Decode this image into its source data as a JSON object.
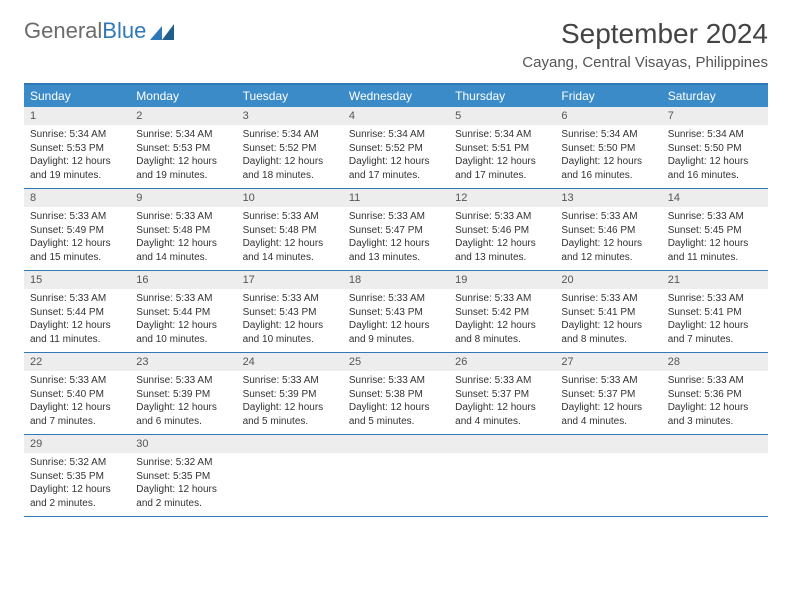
{
  "logo": {
    "text1": "General",
    "text2": "Blue"
  },
  "title": "September 2024",
  "location": "Cayang, Central Visayas, Philippines",
  "colors": {
    "header_bar": "#3b8bc9",
    "border": "#2f79b9",
    "daynum_bg": "#ededed",
    "text": "#333333",
    "logo_gray": "#6b6b6b"
  },
  "weekdays": [
    "Sunday",
    "Monday",
    "Tuesday",
    "Wednesday",
    "Thursday",
    "Friday",
    "Saturday"
  ],
  "weeks": [
    [
      {
        "n": "1",
        "sr": "5:34 AM",
        "ss": "5:53 PM",
        "dl": "12 hours and 19 minutes."
      },
      {
        "n": "2",
        "sr": "5:34 AM",
        "ss": "5:53 PM",
        "dl": "12 hours and 19 minutes."
      },
      {
        "n": "3",
        "sr": "5:34 AM",
        "ss": "5:52 PM",
        "dl": "12 hours and 18 minutes."
      },
      {
        "n": "4",
        "sr": "5:34 AM",
        "ss": "5:52 PM",
        "dl": "12 hours and 17 minutes."
      },
      {
        "n": "5",
        "sr": "5:34 AM",
        "ss": "5:51 PM",
        "dl": "12 hours and 17 minutes."
      },
      {
        "n": "6",
        "sr": "5:34 AM",
        "ss": "5:50 PM",
        "dl": "12 hours and 16 minutes."
      },
      {
        "n": "7",
        "sr": "5:34 AM",
        "ss": "5:50 PM",
        "dl": "12 hours and 16 minutes."
      }
    ],
    [
      {
        "n": "8",
        "sr": "5:33 AM",
        "ss": "5:49 PM",
        "dl": "12 hours and 15 minutes."
      },
      {
        "n": "9",
        "sr": "5:33 AM",
        "ss": "5:48 PM",
        "dl": "12 hours and 14 minutes."
      },
      {
        "n": "10",
        "sr": "5:33 AM",
        "ss": "5:48 PM",
        "dl": "12 hours and 14 minutes."
      },
      {
        "n": "11",
        "sr": "5:33 AM",
        "ss": "5:47 PM",
        "dl": "12 hours and 13 minutes."
      },
      {
        "n": "12",
        "sr": "5:33 AM",
        "ss": "5:46 PM",
        "dl": "12 hours and 13 minutes."
      },
      {
        "n": "13",
        "sr": "5:33 AM",
        "ss": "5:46 PM",
        "dl": "12 hours and 12 minutes."
      },
      {
        "n": "14",
        "sr": "5:33 AM",
        "ss": "5:45 PM",
        "dl": "12 hours and 11 minutes."
      }
    ],
    [
      {
        "n": "15",
        "sr": "5:33 AM",
        "ss": "5:44 PM",
        "dl": "12 hours and 11 minutes."
      },
      {
        "n": "16",
        "sr": "5:33 AM",
        "ss": "5:44 PM",
        "dl": "12 hours and 10 minutes."
      },
      {
        "n": "17",
        "sr": "5:33 AM",
        "ss": "5:43 PM",
        "dl": "12 hours and 10 minutes."
      },
      {
        "n": "18",
        "sr": "5:33 AM",
        "ss": "5:43 PM",
        "dl": "12 hours and 9 minutes."
      },
      {
        "n": "19",
        "sr": "5:33 AM",
        "ss": "5:42 PM",
        "dl": "12 hours and 8 minutes."
      },
      {
        "n": "20",
        "sr": "5:33 AM",
        "ss": "5:41 PM",
        "dl": "12 hours and 8 minutes."
      },
      {
        "n": "21",
        "sr": "5:33 AM",
        "ss": "5:41 PM",
        "dl": "12 hours and 7 minutes."
      }
    ],
    [
      {
        "n": "22",
        "sr": "5:33 AM",
        "ss": "5:40 PM",
        "dl": "12 hours and 7 minutes."
      },
      {
        "n": "23",
        "sr": "5:33 AM",
        "ss": "5:39 PM",
        "dl": "12 hours and 6 minutes."
      },
      {
        "n": "24",
        "sr": "5:33 AM",
        "ss": "5:39 PM",
        "dl": "12 hours and 5 minutes."
      },
      {
        "n": "25",
        "sr": "5:33 AM",
        "ss": "5:38 PM",
        "dl": "12 hours and 5 minutes."
      },
      {
        "n": "26",
        "sr": "5:33 AM",
        "ss": "5:37 PM",
        "dl": "12 hours and 4 minutes."
      },
      {
        "n": "27",
        "sr": "5:33 AM",
        "ss": "5:37 PM",
        "dl": "12 hours and 4 minutes."
      },
      {
        "n": "28",
        "sr": "5:33 AM",
        "ss": "5:36 PM",
        "dl": "12 hours and 3 minutes."
      }
    ],
    [
      {
        "n": "29",
        "sr": "5:32 AM",
        "ss": "5:35 PM",
        "dl": "12 hours and 2 minutes."
      },
      {
        "n": "30",
        "sr": "5:32 AM",
        "ss": "5:35 PM",
        "dl": "12 hours and 2 minutes."
      },
      null,
      null,
      null,
      null,
      null
    ]
  ],
  "labels": {
    "sunrise": "Sunrise:",
    "sunset": "Sunset:",
    "daylight": "Daylight:"
  }
}
